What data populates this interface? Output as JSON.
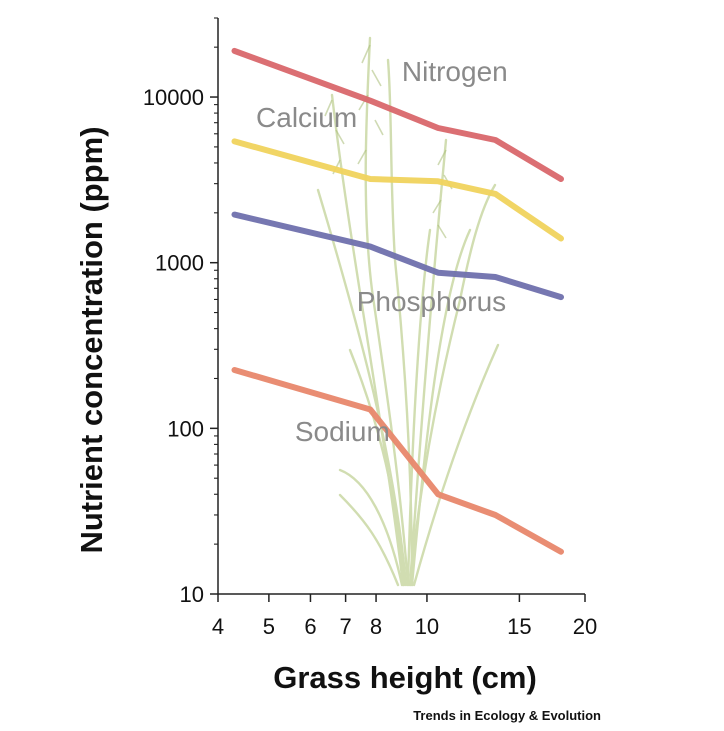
{
  "chart_data": {
    "type": "line",
    "xlabel": "Grass height (cm)",
    "ylabel": "Nutrient concentration (ppm)",
    "x_scale": "log",
    "y_scale": "log",
    "xlim": [
      4,
      20
    ],
    "ylim": [
      10,
      30000
    ],
    "x_ticks": [
      4,
      5,
      6,
      7,
      8,
      10,
      15,
      20
    ],
    "x_tick_labels": [
      "4",
      "5",
      "6",
      "7",
      "8",
      "10",
      "15",
      "20"
    ],
    "y_ticks": [
      10,
      100,
      1000,
      10000
    ],
    "y_tick_labels": [
      "10",
      "100",
      "1000",
      "10000"
    ],
    "grid": false,
    "series": [
      {
        "name": "Nitrogen",
        "color": "#d9676b",
        "x": [
          4.3,
          7.8,
          10.5,
          13.5,
          18
        ],
        "y": [
          19000,
          9500,
          6500,
          5500,
          3200
        ]
      },
      {
        "name": "Calcium",
        "color": "#f0d35d",
        "x": [
          4.3,
          7.8,
          10.5,
          13.5,
          18
        ],
        "y": [
          5400,
          3200,
          3100,
          2600,
          1400
        ]
      },
      {
        "name": "Phosphorus",
        "color": "#6f70ad",
        "x": [
          4.3,
          7.8,
          10.5,
          13.5,
          18
        ],
        "y": [
          1950,
          1250,
          870,
          820,
          620
        ]
      },
      {
        "name": "Sodium",
        "color": "#e8876b",
        "x": [
          4.3,
          7.8,
          10.5,
          13.5,
          18
        ],
        "y": [
          225,
          130,
          40,
          30,
          18
        ]
      }
    ],
    "credit": "Trends in Ecology & Evolution",
    "background_icon": "grass-illustration-icon"
  }
}
